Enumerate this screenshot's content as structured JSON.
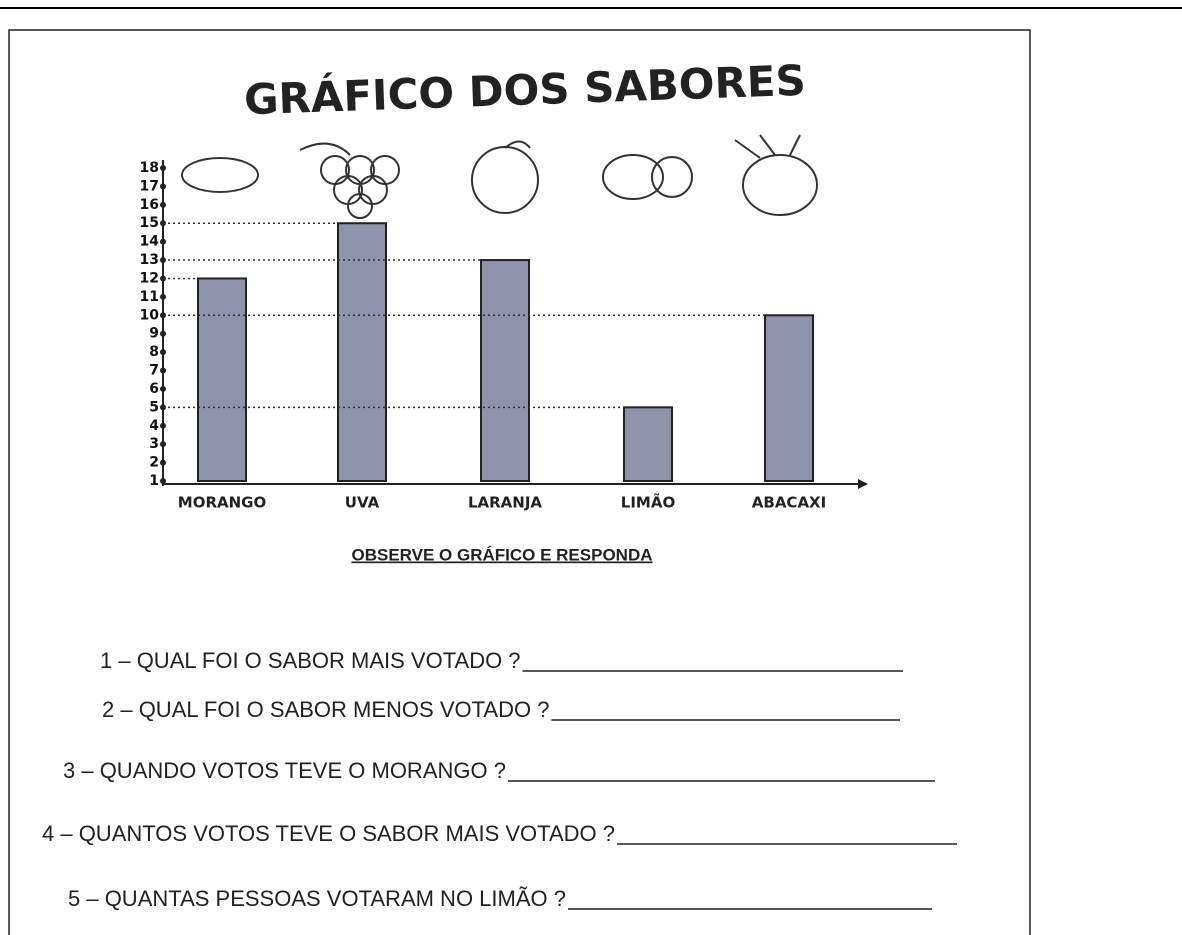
{
  "chart_data": {
    "type": "bar",
    "title": "GRÁFICO DOS SABORES",
    "categories": [
      "MORANGO",
      "UVA",
      "LARANJA",
      "LIMÃO",
      "ABACAXI"
    ],
    "values": [
      12,
      15,
      13,
      5,
      10
    ],
    "color": "#8e93ab",
    "ylim": [
      1,
      18
    ],
    "yticks": [
      1,
      2,
      3,
      4,
      5,
      6,
      7,
      8,
      9,
      10,
      11,
      12,
      13,
      14,
      15,
      16,
      17,
      18
    ]
  },
  "worksheet": {
    "heading": "OBSERVE O GRÁFICO E RESPONDA",
    "questions": [
      "1 – QUAL FOI O SABOR MAIS VOTADO  ?",
      "2 – QUAL FOI O SABOR MENOS VOTADO ?",
      "3 – QUANDO VOTOS TEVE O MORANGO ?",
      "4 – QUANTOS VOTOS TEVE O SABOR MAIS VOTADO ?",
      "5 – QUANTAS PESSOAS VOTARAM NO LIMÃO ?"
    ]
  }
}
